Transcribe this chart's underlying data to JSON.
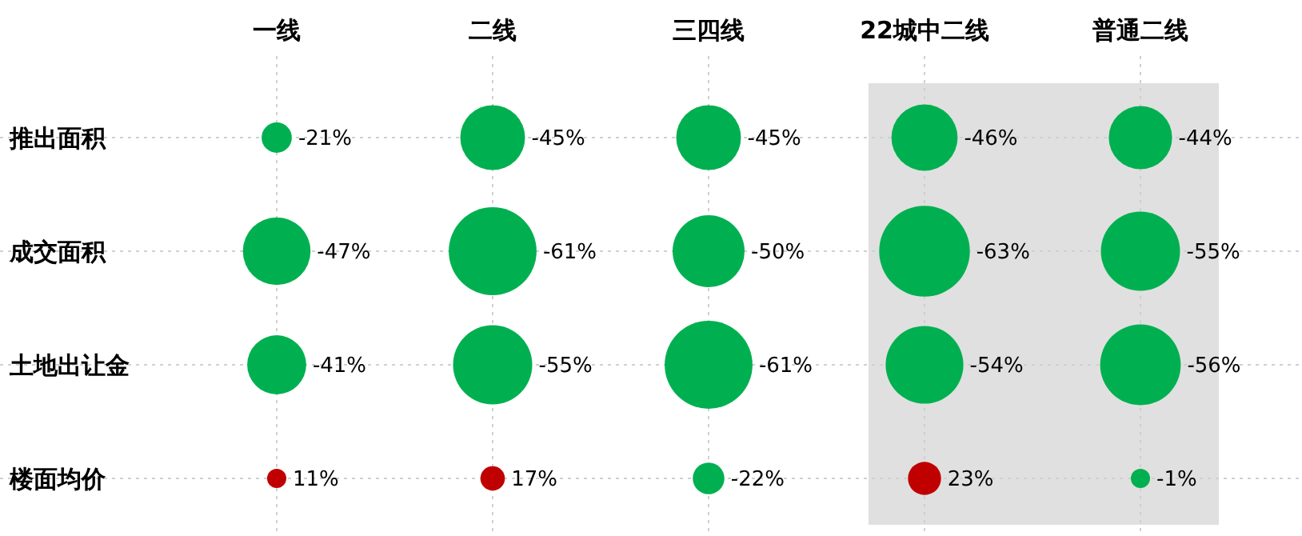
{
  "chart_data": {
    "type": "heatmap",
    "categories": [
      "一线",
      "二线",
      "三四线",
      "22城中二线",
      "普通二线"
    ],
    "y_categories": [
      "推出面积",
      "成交面积",
      "土地出让金",
      "楼面均价"
    ],
    "cells": [
      [
        -21,
        -45,
        -45,
        -46,
        -44
      ],
      [
        -47,
        -61,
        -50,
        -63,
        -55
      ],
      [
        -41,
        -55,
        -61,
        -54,
        -56
      ],
      [
        11,
        17,
        -22,
        23,
        -1
      ]
    ],
    "cell_labels": [
      [
        "-21%",
        "-45%",
        "-45%",
        "-46%",
        "-44%"
      ],
      [
        "-47%",
        "-61%",
        "-50%",
        "-63%",
        "-55%"
      ],
      [
        "-41%",
        "-55%",
        "-61%",
        "-54%",
        "-56%"
      ],
      [
        "11%",
        "17%",
        "-22%",
        "23%",
        "-1%"
      ]
    ],
    "colors": [
      "#00b050",
      "#c00000"
    ],
    "bands": [
      {
        "axis": "x",
        "from": "22城中二线",
        "to": "普通二线",
        "color": "#e0e0e0"
      }
    ],
    "grid": true
  }
}
